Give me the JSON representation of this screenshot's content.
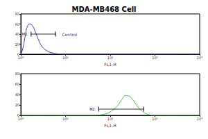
{
  "title": "MDA-MB468 Cell",
  "chart_data": [
    {
      "type": "line",
      "color": "#3a3ad0",
      "x_label": "FL1-H",
      "log": "x",
      "x": [
        1,
        1.1,
        1.25,
        1.4,
        1.6,
        1.8,
        2.1,
        2.5,
        3,
        4,
        5.5,
        8,
        10000
      ],
      "values": [
        0,
        10,
        35,
        55,
        60,
        57,
        45,
        28,
        15,
        6,
        2,
        0,
        0
      ],
      "xlim": [
        1,
        10000
      ],
      "xticks": [
        {
          "value": 1,
          "label": "10⁰"
        },
        {
          "value": 10,
          "label": "10¹"
        },
        {
          "value": 100,
          "label": "10²"
        },
        {
          "value": 1000,
          "label": "10³"
        },
        {
          "value": 10000,
          "label": "10⁴"
        }
      ],
      "ylim": [
        0,
        80
      ],
      "yticks": [
        0,
        20,
        40,
        60,
        80
      ],
      "grid": false,
      "gate": {
        "from": 1.7,
        "to": 6,
        "y": 40,
        "label": "M1"
      },
      "annotations": [
        {
          "text": "Control",
          "x": 7,
          "y": 40
        }
      ]
    },
    {
      "type": "line",
      "color": "#3cc83c",
      "x_label": "FL1-H",
      "log": "x",
      "x": [
        1,
        40,
        70,
        100,
        140,
        180,
        220,
        260,
        320,
        400,
        520,
        700,
        1000,
        10000
      ],
      "values": [
        0,
        0,
        2,
        7,
        17,
        30,
        38,
        37,
        30,
        18,
        8,
        2,
        0,
        0
      ],
      "xlim": [
        1,
        10000
      ],
      "xticks": [
        {
          "value": 1,
          "label": "10⁰"
        },
        {
          "value": 10,
          "label": "10¹"
        },
        {
          "value": 100,
          "label": "10²"
        },
        {
          "value": 1000,
          "label": "10³"
        },
        {
          "value": 10000,
          "label": "10⁴"
        }
      ],
      "ylim": [
        0,
        80
      ],
      "yticks": [
        0,
        20,
        40,
        60,
        80
      ],
      "grid": false,
      "gate": {
        "from": 55,
        "to": 560,
        "y": 12,
        "label": "M2"
      },
      "annotations": []
    }
  ]
}
